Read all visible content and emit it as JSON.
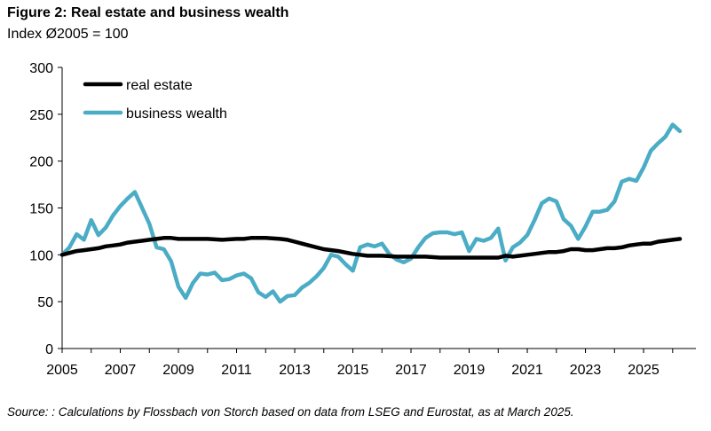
{
  "figure": {
    "title": "Figure 2: Real estate and business wealth",
    "subtitle": "Index Ø2005 = 100",
    "source": "Source: : Calculations by Flossbach von Storch based on data from LSEG and Eurostat, as at March 2025."
  },
  "chart_data": {
    "type": "line",
    "title": "Figure 2: Real estate and business wealth",
    "subtitle": "Index Ø2005 = 100",
    "xlabel": "",
    "ylabel": "",
    "xlim": [
      2005,
      2026.8
    ],
    "ylim": [
      0,
      300
    ],
    "x_ticks": [
      "2005",
      "2007",
      "2009",
      "2011",
      "2013",
      "2015",
      "2017",
      "2019",
      "2021",
      "2023",
      "2025"
    ],
    "y_ticks": [
      "0",
      "50",
      "100",
      "150",
      "200",
      "250",
      "300"
    ],
    "grid": false,
    "legend": "top-left",
    "series": [
      {
        "name": "real estate",
        "color": "#000000",
        "points": [
          [
            2005.0,
            100
          ],
          [
            2005.25,
            102
          ],
          [
            2005.5,
            104
          ],
          [
            2005.75,
            105
          ],
          [
            2006.0,
            106
          ],
          [
            2006.25,
            107
          ],
          [
            2006.5,
            109
          ],
          [
            2006.75,
            110
          ],
          [
            2007.0,
            111
          ],
          [
            2007.25,
            113
          ],
          [
            2007.5,
            114
          ],
          [
            2007.75,
            115
          ],
          [
            2008.0,
            116
          ],
          [
            2008.25,
            117
          ],
          [
            2008.5,
            118
          ],
          [
            2008.75,
            118
          ],
          [
            2009.0,
            117
          ],
          [
            2009.5,
            117
          ],
          [
            2010.0,
            117
          ],
          [
            2010.5,
            116
          ],
          [
            2011.0,
            117
          ],
          [
            2011.25,
            117
          ],
          [
            2011.5,
            118
          ],
          [
            2011.75,
            118
          ],
          [
            2012.0,
            118
          ],
          [
            2012.5,
            117
          ],
          [
            2012.75,
            116
          ],
          [
            2013.0,
            114
          ],
          [
            2013.25,
            112
          ],
          [
            2013.5,
            110
          ],
          [
            2013.75,
            108
          ],
          [
            2014.0,
            106
          ],
          [
            2014.5,
            104
          ],
          [
            2015.0,
            101
          ],
          [
            2015.25,
            100
          ],
          [
            2015.5,
            99
          ],
          [
            2016.0,
            99
          ],
          [
            2016.5,
            98
          ],
          [
            2017.0,
            98
          ],
          [
            2017.5,
            98
          ],
          [
            2018.0,
            97
          ],
          [
            2018.5,
            97
          ],
          [
            2019.0,
            97
          ],
          [
            2019.5,
            97
          ],
          [
            2020.0,
            97
          ],
          [
            2020.25,
            99
          ],
          [
            2020.5,
            98
          ],
          [
            2020.75,
            99
          ],
          [
            2021.0,
            100
          ],
          [
            2021.25,
            101
          ],
          [
            2021.5,
            102
          ],
          [
            2021.75,
            103
          ],
          [
            2022.0,
            103
          ],
          [
            2022.25,
            104
          ],
          [
            2022.5,
            106
          ],
          [
            2022.75,
            106
          ],
          [
            2023.0,
            105
          ],
          [
            2023.25,
            105
          ],
          [
            2023.5,
            106
          ],
          [
            2023.75,
            107
          ],
          [
            2024.0,
            107
          ],
          [
            2024.25,
            108
          ],
          [
            2024.5,
            110
          ],
          [
            2024.75,
            111
          ],
          [
            2025.0,
            112
          ],
          [
            2025.25,
            112
          ],
          [
            2025.5,
            114
          ],
          [
            2025.75,
            115
          ],
          [
            2026.0,
            116
          ],
          [
            2026.25,
            117
          ]
        ]
      },
      {
        "name": "business wealth",
        "color": "#4BACC6",
        "points": [
          [
            2005.0,
            100
          ],
          [
            2005.25,
            108
          ],
          [
            2005.5,
            122
          ],
          [
            2005.75,
            116
          ],
          [
            2006.0,
            137
          ],
          [
            2006.25,
            121
          ],
          [
            2006.5,
            129
          ],
          [
            2006.75,
            142
          ],
          [
            2007.0,
            152
          ],
          [
            2007.25,
            160
          ],
          [
            2007.5,
            167
          ],
          [
            2007.75,
            150
          ],
          [
            2008.0,
            133
          ],
          [
            2008.25,
            108
          ],
          [
            2008.5,
            106
          ],
          [
            2008.75,
            93
          ],
          [
            2009.0,
            66
          ],
          [
            2009.25,
            54
          ],
          [
            2009.5,
            70
          ],
          [
            2009.75,
            80
          ],
          [
            2010.0,
            79
          ],
          [
            2010.25,
            81
          ],
          [
            2010.5,
            73
          ],
          [
            2010.75,
            74
          ],
          [
            2011.0,
            78
          ],
          [
            2011.25,
            80
          ],
          [
            2011.5,
            75
          ],
          [
            2011.75,
            60
          ],
          [
            2012.0,
            55
          ],
          [
            2012.25,
            61
          ],
          [
            2012.5,
            50
          ],
          [
            2012.75,
            56
          ],
          [
            2013.0,
            57
          ],
          [
            2013.25,
            65
          ],
          [
            2013.5,
            70
          ],
          [
            2013.75,
            77
          ],
          [
            2014.0,
            86
          ],
          [
            2014.25,
            100
          ],
          [
            2014.5,
            98
          ],
          [
            2014.75,
            90
          ],
          [
            2015.0,
            83
          ],
          [
            2015.25,
            108
          ],
          [
            2015.5,
            111
          ],
          [
            2015.75,
            109
          ],
          [
            2016.0,
            112
          ],
          [
            2016.25,
            101
          ],
          [
            2016.5,
            95
          ],
          [
            2016.75,
            92
          ],
          [
            2017.0,
            96
          ],
          [
            2017.25,
            108
          ],
          [
            2017.5,
            118
          ],
          [
            2017.75,
            123
          ],
          [
            2018.0,
            124
          ],
          [
            2018.25,
            124
          ],
          [
            2018.5,
            122
          ],
          [
            2018.75,
            124
          ],
          [
            2019.0,
            104
          ],
          [
            2019.25,
            117
          ],
          [
            2019.5,
            115
          ],
          [
            2019.75,
            118
          ],
          [
            2020.0,
            128
          ],
          [
            2020.25,
            94
          ],
          [
            2020.5,
            108
          ],
          [
            2020.75,
            113
          ],
          [
            2021.0,
            121
          ],
          [
            2021.25,
            137
          ],
          [
            2021.5,
            155
          ],
          [
            2021.75,
            160
          ],
          [
            2022.0,
            157
          ],
          [
            2022.25,
            138
          ],
          [
            2022.5,
            131
          ],
          [
            2022.75,
            117
          ],
          [
            2023.0,
            130
          ],
          [
            2023.25,
            146
          ],
          [
            2023.5,
            146
          ],
          [
            2023.75,
            148
          ],
          [
            2024.0,
            157
          ],
          [
            2024.25,
            178
          ],
          [
            2024.5,
            181
          ],
          [
            2024.75,
            179
          ],
          [
            2025.0,
            193
          ],
          [
            2025.25,
            211
          ],
          [
            2025.5,
            219
          ],
          [
            2025.75,
            226
          ],
          [
            2026.0,
            239
          ],
          [
            2026.25,
            232
          ]
        ]
      }
    ]
  }
}
